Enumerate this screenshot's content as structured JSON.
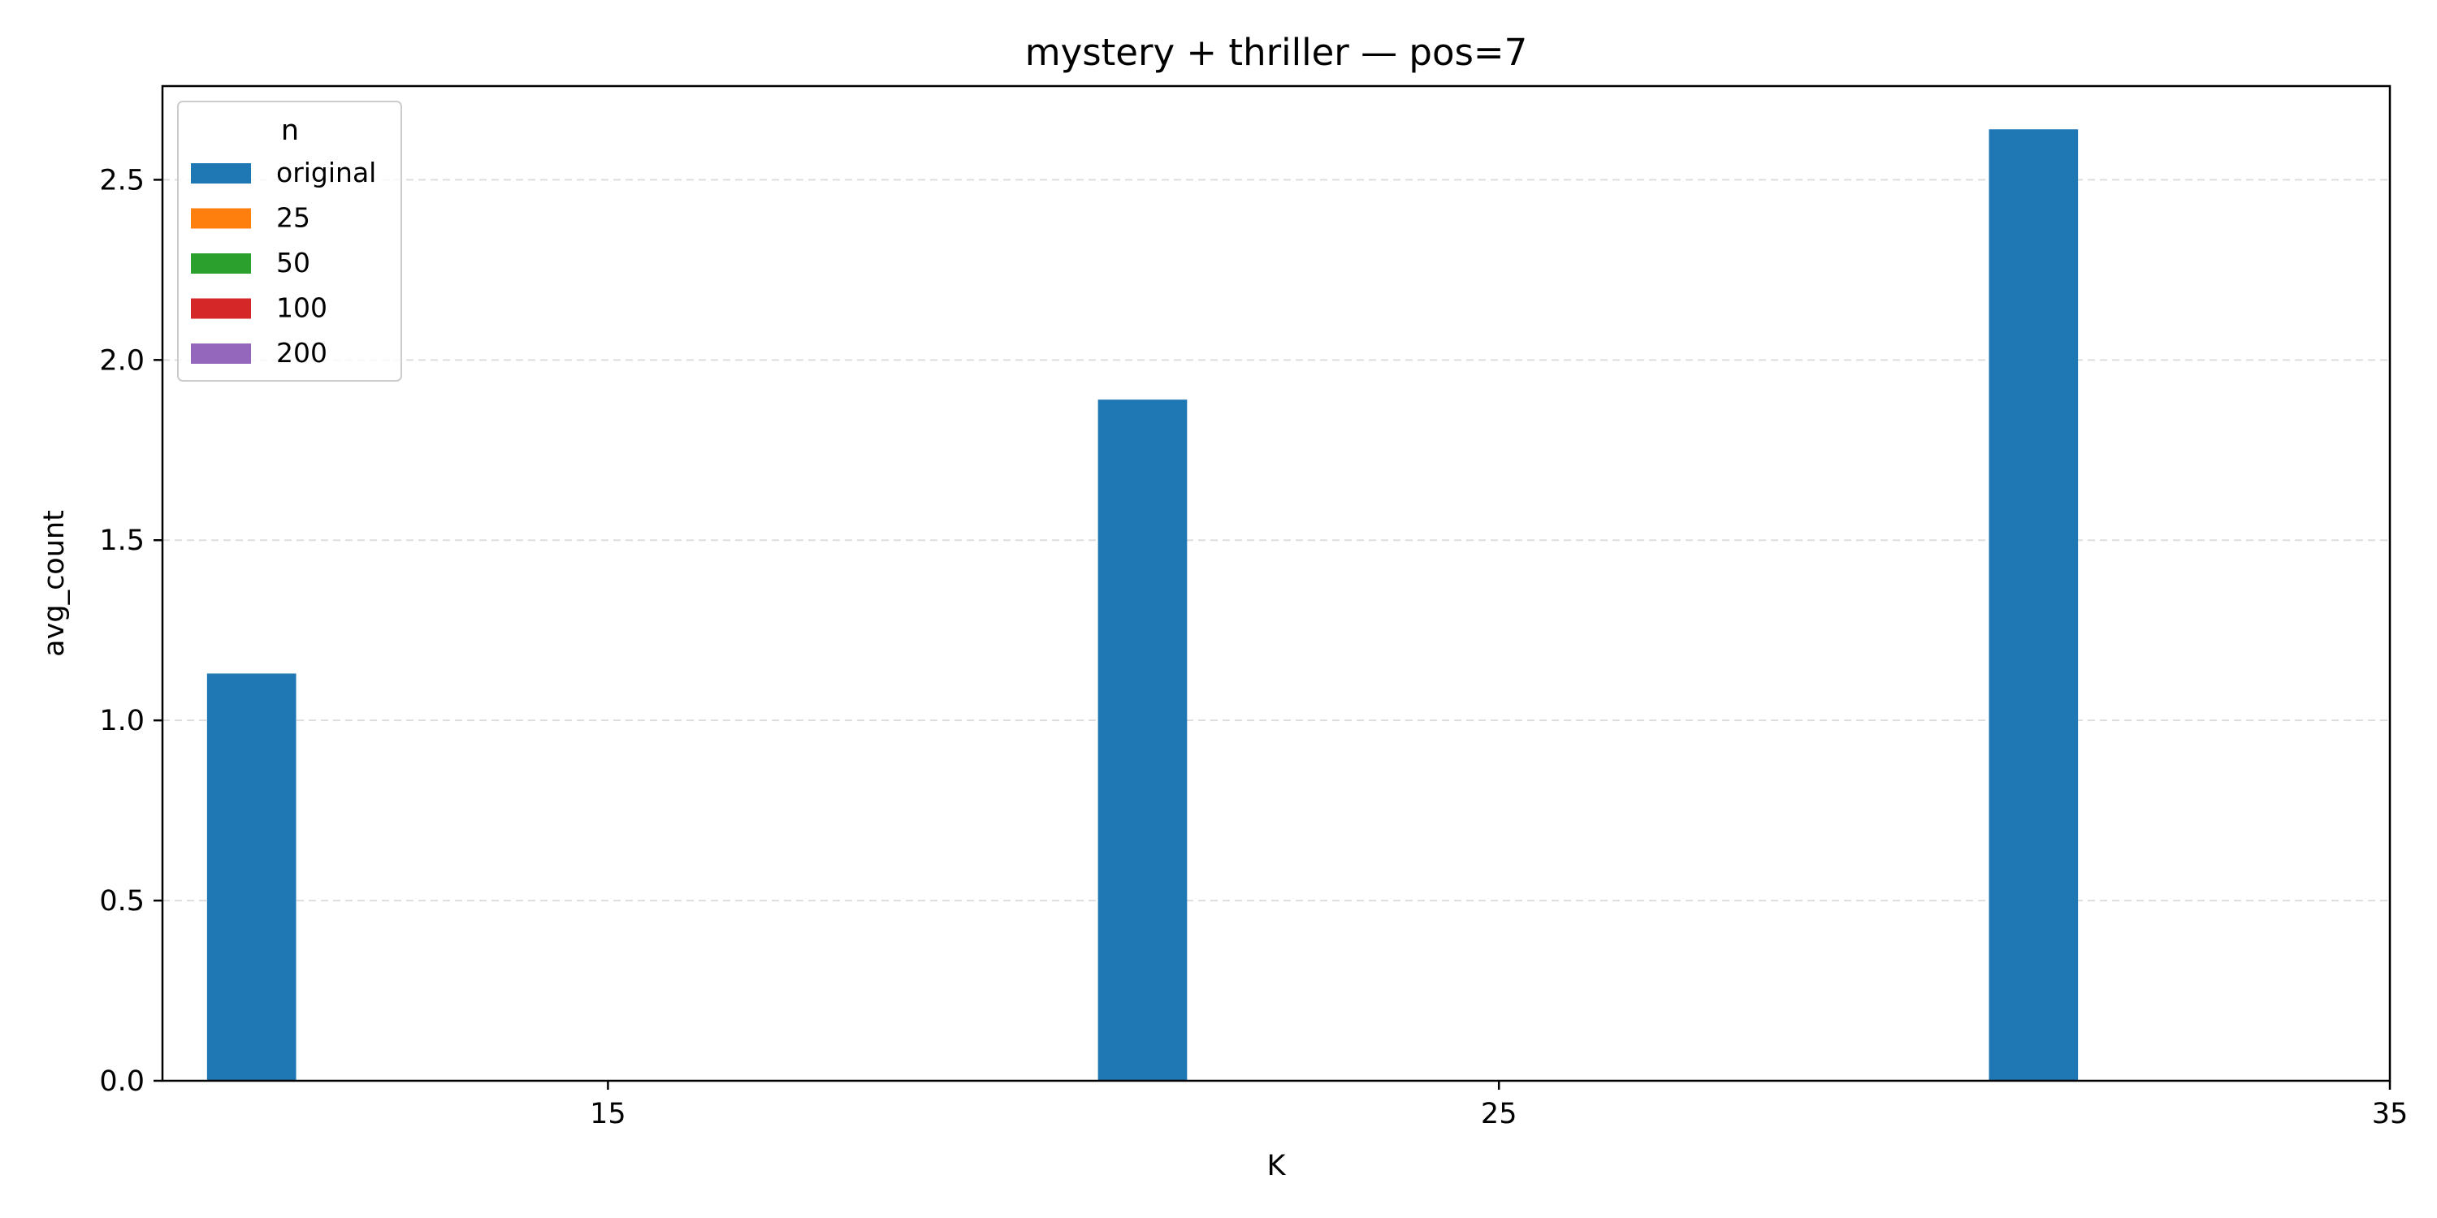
{
  "chart_data": {
    "type": "bar",
    "title": "mystery + thriller — pos=7",
    "xlabel": "K",
    "ylabel": "avg_count",
    "x_ticks": [
      "15",
      "25",
      "35"
    ],
    "y_ticks": [
      "0.0",
      "0.5",
      "1.0",
      "1.5",
      "2.0",
      "2.5"
    ],
    "ylim": [
      0,
      2.76
    ],
    "grid": "y, dashed",
    "legend": {
      "title": "n",
      "placement": "top-left",
      "entries": [
        {
          "label": "original",
          "color": "#1f77b4"
        },
        {
          "label": "25",
          "color": "#ff7f0e"
        },
        {
          "label": "50",
          "color": "#2ca02c"
        },
        {
          "label": "100",
          "color": "#d62728"
        },
        {
          "label": "200",
          "color": "#9467bd"
        }
      ]
    },
    "series": [
      {
        "name": "original",
        "color": "#1f77b4",
        "points": [
          {
            "x": 15,
            "y": 1.13
          },
          {
            "x": 25,
            "y": 1.89
          },
          {
            "x": 35,
            "y": 2.64
          }
        ]
      },
      {
        "name": "25",
        "color": "#ff7f0e",
        "points": []
      },
      {
        "name": "50",
        "color": "#2ca02c",
        "points": []
      },
      {
        "name": "100",
        "color": "#d62728",
        "points": []
      },
      {
        "name": "200",
        "color": "#9467bd",
        "points": []
      }
    ]
  }
}
